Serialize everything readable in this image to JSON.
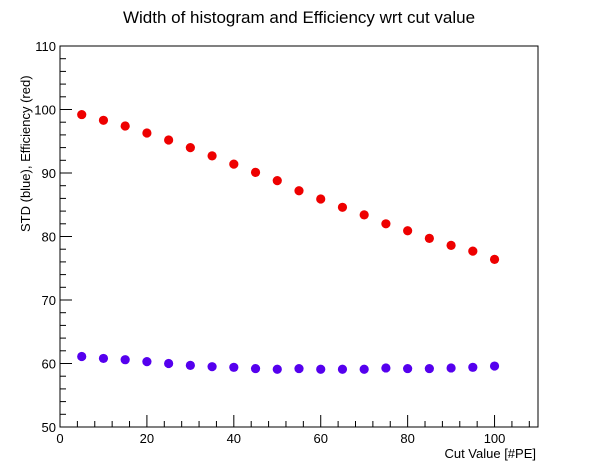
{
  "chart_data": {
    "type": "scatter",
    "title": "Width of histogram and Efficiency wrt cut value",
    "xlabel": "Cut Value [#PE]",
    "ylabel": "STD (blue),  Efficiency (red)",
    "xlim": [
      0,
      110
    ],
    "ylim": [
      50,
      110
    ],
    "xticks": [
      0,
      20,
      40,
      60,
      80,
      100
    ],
    "yticks": [
      50,
      60,
      70,
      80,
      90,
      100,
      110
    ],
    "grid": false,
    "series": [
      {
        "color": "#ee0000",
        "x": [
          5,
          10,
          15,
          20,
          25,
          30,
          35,
          40,
          45,
          50,
          55,
          60,
          65,
          70,
          75,
          80,
          85,
          90,
          95,
          100
        ],
        "y": [
          99.2,
          98.3,
          97.4,
          96.3,
          95.2,
          94.0,
          92.7,
          91.4,
          90.1,
          88.8,
          87.2,
          85.9,
          84.6,
          83.4,
          82.0,
          80.9,
          79.7,
          78.6,
          77.7,
          76.4
        ]
      },
      {
        "color": "#5500ee",
        "x": [
          5,
          10,
          15,
          20,
          25,
          30,
          35,
          40,
          45,
          50,
          55,
          60,
          65,
          70,
          75,
          80,
          85,
          90,
          95,
          100
        ],
        "y": [
          61.1,
          60.8,
          60.6,
          60.3,
          60.0,
          59.7,
          59.5,
          59.4,
          59.2,
          59.1,
          59.2,
          59.1,
          59.1,
          59.1,
          59.3,
          59.2,
          59.2,
          59.3,
          59.4,
          59.6
        ]
      }
    ]
  }
}
